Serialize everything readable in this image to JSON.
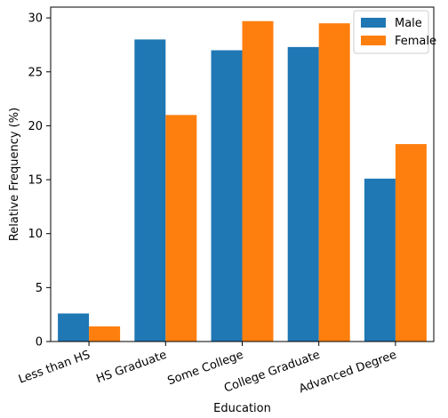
{
  "chart_data": {
    "type": "bar",
    "categories": [
      "Less than HS",
      "HS Graduate",
      "Some College",
      "College Graduate",
      "Advanced Degree"
    ],
    "series": [
      {
        "name": "Male",
        "color": "#1f77b4",
        "values": [
          2.6,
          28.0,
          27.0,
          27.3,
          15.1
        ]
      },
      {
        "name": "Female",
        "color": "#ff7f0e",
        "values": [
          1.4,
          21.0,
          29.7,
          29.5,
          18.3
        ]
      }
    ],
    "xlabel": "Education",
    "ylabel": "Relative Frequency (%)",
    "ylim": [
      0,
      31
    ],
    "yticks": [
      0,
      5,
      10,
      15,
      20,
      25,
      30
    ],
    "grid": false,
    "legend_position": "top-right"
  }
}
